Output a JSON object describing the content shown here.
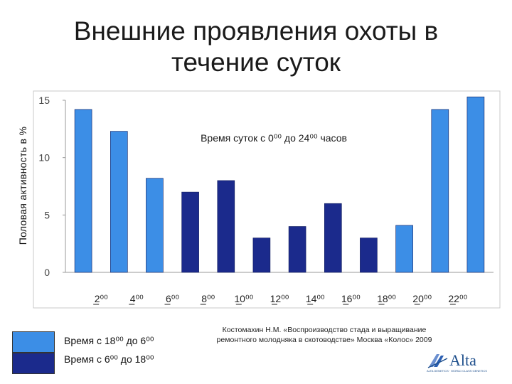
{
  "title_line1": "Внешние проявления охоты в",
  "title_line2": "течение суток",
  "legend": [
    {
      "color": "#3c8ee6",
      "text": "Время с 18⁰⁰ до 6⁰⁰"
    },
    {
      "color": "#1b2a8c",
      "text": "Время с 6⁰⁰ до 18⁰⁰"
    }
  ],
  "source": "Костомахин Н.М. «Воспроизводство стада и выращивание ремонтного молодняка в скотоводстве» Москва «Колос» 2009",
  "logo": {
    "name": "Alta",
    "tagline": "ALTA GENETICS · WORLD CLASS GENETICS"
  },
  "chart_data": {
    "type": "bar",
    "ylabel": "Половая  активность в %",
    "annotation": "Время суток с 0⁰⁰ до 24⁰⁰ часов",
    "ylim": [
      0,
      15
    ],
    "yticks": [
      "0",
      "5",
      "10",
      "15"
    ],
    "grid": false,
    "colors": {
      "night": "#3c8ee6",
      "day": "#1b2a8c"
    },
    "x_tick_labels": [
      "2⁰⁰",
      "4⁰⁰",
      "6⁰⁰",
      "8⁰⁰",
      "10⁰⁰",
      "12⁰⁰",
      "14⁰⁰",
      "16⁰⁰",
      "18⁰⁰",
      "20⁰⁰",
      "22⁰⁰"
    ],
    "values": [
      14.2,
      12.3,
      8.2,
      7.0,
      8.0,
      3.0,
      4.0,
      6.0,
      3.0,
      4.1,
      14.2,
      15.3
    ],
    "periods": [
      "night",
      "night",
      "night",
      "day",
      "day",
      "day",
      "day",
      "day",
      "day",
      "night",
      "night",
      "night"
    ]
  }
}
